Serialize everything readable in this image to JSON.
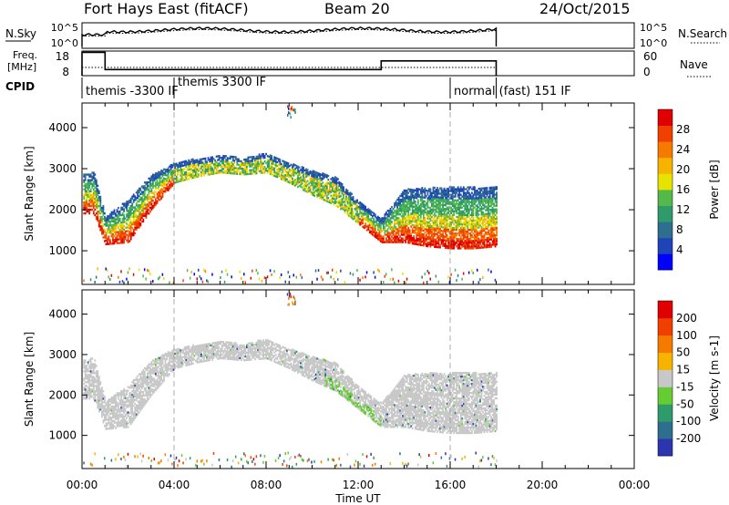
{
  "header": {
    "title": "Fort Hays East (fitACF)",
    "beam": "Beam 20",
    "date": "24/Oct/2015"
  },
  "side_labels": {
    "nsky": "N.Sky",
    "nsearch": "N.Search",
    "freq_line1": "Freq.",
    "freq_line2": "[MHz]",
    "nave": "Nave",
    "cpid": "CPID"
  },
  "cpid_segments": [
    {
      "start": 0.0,
      "text": "themis -3300 IF"
    },
    {
      "start": 4.0,
      "text": "themis 3300 IF"
    },
    {
      "start": 16.0,
      "text": "normal (fast) 151 IF"
    }
  ],
  "noise_panel": {
    "left_ticks": [
      "10^5",
      "10^0"
    ],
    "right_ticks": [
      "10^5",
      "10^0"
    ]
  },
  "freq_panel": {
    "left_ticks": [
      "18",
      "8"
    ],
    "right_ticks": [
      "60",
      "0"
    ],
    "freq_step": [
      {
        "t0": 0.0,
        "t1": 1.0,
        "mhz": 17.5
      },
      {
        "t0": 1.0,
        "t1": 13.0,
        "mhz": 10.5
      },
      {
        "t0": 13.0,
        "t1": 18.0,
        "mhz": 14.0
      }
    ]
  },
  "power_panel": {
    "ylabel": "Slant Range [km]",
    "yticks": [
      1000,
      2000,
      3000,
      4000
    ],
    "yrange": [
      180,
      4600
    ],
    "colorbar_label": "Power [dB]",
    "colorbar_ticks": [
      "28",
      "24",
      "20",
      "16",
      "12",
      "8",
      "4"
    ],
    "colors": [
      "#0000ff",
      "#1f44b8",
      "#2e6e8e",
      "#2f9a6a",
      "#53b94a",
      "#e8e200",
      "#f6b400",
      "#f77a00",
      "#f04000",
      "#e00000"
    ]
  },
  "velocity_panel": {
    "ylabel": "Slant Range [km]",
    "yticks": [
      1000,
      2000,
      3000,
      4000
    ],
    "colorbar_label": "Velocity [m s-1]",
    "colorbar_ticks": [
      "200",
      "100",
      "50",
      "15",
      "-15",
      "-50",
      "-100",
      "-200"
    ],
    "colors": [
      "#2b35b0",
      "#2e6e8e",
      "#2f9a6a",
      "#66cc33",
      "#c8c8c8",
      "#f6b400",
      "#f77a00",
      "#f04000",
      "#e00000"
    ]
  },
  "xaxis": {
    "ticks": [
      "00:00",
      "04:00",
      "08:00",
      "12:00",
      "16:00",
      "20:00",
      "00:00"
    ],
    "label": "Time UT",
    "range_hours": [
      0,
      24
    ]
  },
  "chart_data": {
    "type": "heatmap",
    "title": "Fort Hays East (fitACF)",
    "subtitle": "Beam 20",
    "date": "24/Oct/2015",
    "xlabel": "Time UT",
    "ylabel": "Slant Range [km]",
    "xlim_hours": [
      0,
      24
    ],
    "ylim_km": [
      180,
      4600
    ],
    "data_end_hour": 18.0,
    "vertical_markers_hours": [
      4.0,
      16.0
    ],
    "echo_band_upper_km": {
      "hours": [
        0.0,
        0.5,
        1.0,
        2.0,
        3.0,
        4.0,
        5.0,
        6.0,
        7.0,
        8.0,
        9.0,
        10.0,
        11.0,
        12.0,
        13.0,
        14.0,
        15.0,
        16.0,
        17.0,
        18.0
      ],
      "km": [
        2750,
        2850,
        1750,
        2150,
        2750,
        3050,
        3150,
        3250,
        3150,
        3300,
        3050,
        2850,
        2700,
        2100,
        1700,
        2400,
        2450,
        2450,
        2450,
        2450
      ]
    },
    "echo_band_lower_km": {
      "hours": [
        0.0,
        0.5,
        1.0,
        2.0,
        3.0,
        4.0,
        5.0,
        6.0,
        7.0,
        8.0,
        9.0,
        10.0,
        11.0,
        12.0,
        13.0,
        14.0,
        15.0,
        16.0,
        17.0,
        18.0
      ],
      "km": [
        1950,
        1950,
        1200,
        1250,
        2050,
        2700,
        2850,
        2950,
        2900,
        2950,
        2700,
        2400,
        2150,
        1700,
        1250,
        1250,
        1150,
        1100,
        1100,
        1150
      ]
    },
    "power_colorbar": {
      "label": "Power [dB]",
      "ticks": [
        28,
        24,
        20,
        16,
        12,
        8,
        4
      ]
    },
    "velocity_colorbar": {
      "label": "Velocity [m s-1]",
      "ticks": [
        200,
        100,
        50,
        15,
        -15,
        -50,
        -100,
        -200
      ]
    }
  }
}
